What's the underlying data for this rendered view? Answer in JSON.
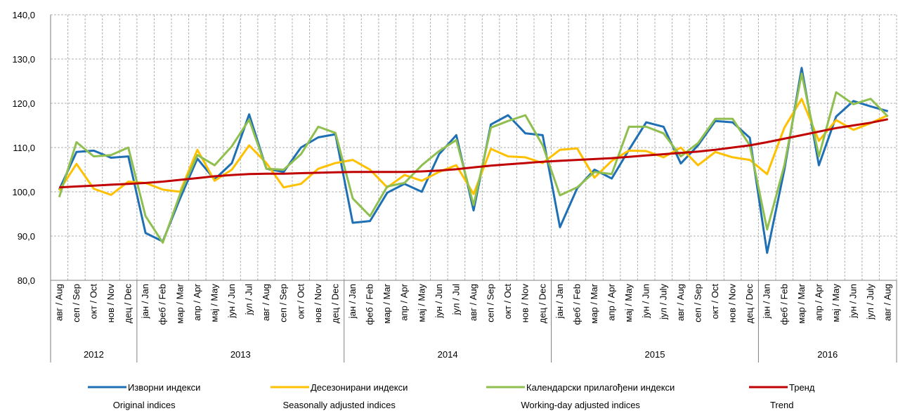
{
  "chart_data": {
    "type": "line",
    "categories": [
      "авг / Aug",
      "сеп / Sep",
      "окт / Oct",
      "нов / Nov",
      "дец / Dec",
      "јан / Jan",
      "феб / Feb",
      "мар / Mar",
      "апр / Apr",
      "мај / May",
      "јун / Jun",
      "јул / Jul",
      "авг / Aug",
      "сеп / Sep",
      "окт / Oct",
      "нов / Nov",
      "дец / Dec",
      "јан / Jan",
      "феб / Feb",
      "мар / Mar",
      "апр / Apr",
      "мај / May",
      "јун / Jun",
      "јул / Jul",
      "авг / Aug",
      "сеп / Sep",
      "окт / Oct",
      "нов / Nov",
      "дец / Dec",
      "јан / Jan",
      "феб / Feb",
      "мар / Mar",
      "апр / Apr",
      "мај / May",
      "јун / Jun",
      "јул / July",
      "авг / Aug",
      "сеп / Sep",
      "окт / Oct",
      "нов / Nov",
      "дец / Dec",
      "јан / Jan",
      "феб / Feb",
      "мар / Mar",
      "апр / Apr",
      "мај / May",
      "јун / Jun",
      "јул / July",
      "авг / Aug"
    ],
    "groups": [
      {
        "label": "2012",
        "count": 5
      },
      {
        "label": "2013",
        "count": 12
      },
      {
        "label": "2014",
        "count": 12
      },
      {
        "label": "2015",
        "count": 12
      },
      {
        "label": "2016",
        "count": 8
      }
    ],
    "series": [
      {
        "name": "Изворни индекси",
        "name_en": "Original indices",
        "color": "#1f6fb5",
        "values": [
          100.5,
          109,
          109.3,
          107.7,
          108,
          90.7,
          88.8,
          98.5,
          107.5,
          102.8,
          106.5,
          117.5,
          105.2,
          104.5,
          110,
          112.3,
          113,
          93,
          93.4,
          99.8,
          101.8,
          100,
          108.5,
          112.8,
          95.8,
          115.2,
          117.3,
          113.2,
          112.8,
          92,
          100.8,
          105,
          103,
          109.5,
          115.7,
          114.7,
          106.4,
          110.5,
          116,
          115.7,
          112.2,
          86.2,
          105,
          128,
          106,
          117,
          120.5,
          119.3,
          118.2
        ]
      },
      {
        "name": "Десезонирани индекси",
        "name_en": "Seasonally adjusted indices",
        "color": "#ffc000",
        "values": [
          100.3,
          106.3,
          100.7,
          99.3,
          102.3,
          102,
          100.5,
          100,
          109.5,
          102.5,
          105,
          110.5,
          106.5,
          101,
          101.8,
          105.2,
          106.5,
          107.2,
          105,
          101,
          103.8,
          102.5,
          104.5,
          106,
          99.5,
          109.7,
          108,
          107.8,
          106.5,
          109.5,
          109.8,
          103.2,
          107,
          109.3,
          109.2,
          107.8,
          110,
          106,
          109,
          107.8,
          107.2,
          104,
          114.5,
          121,
          111.5,
          116.2,
          114,
          115.5,
          117.3
        ]
      },
      {
        "name": "Календарски прилагођени индекси",
        "name_en": "Working-day adjusted indices",
        "color": "#8fbf4f",
        "values": [
          98.8,
          111.2,
          108,
          108.3,
          110,
          94.5,
          88.5,
          99.5,
          108.3,
          106,
          110.3,
          116.3,
          105.2,
          105,
          108.5,
          114.7,
          113.3,
          98.5,
          94.5,
          101.2,
          102,
          106,
          109.2,
          111.7,
          97,
          114.5,
          116,
          117.3,
          110.5,
          99.2,
          101,
          104.5,
          104,
          114.7,
          114.7,
          113.2,
          108,
          111,
          116.5,
          116.5,
          110.5,
          91.5,
          106,
          126.7,
          108,
          122.5,
          119.8,
          121,
          117
        ]
      },
      {
        "name": "Тренд",
        "name_en": "Trend",
        "color": "#c00000",
        "values": [
          101,
          101.2,
          101.4,
          101.6,
          101.8,
          102,
          102.3,
          102.7,
          103.1,
          103.5,
          103.8,
          104,
          104.1,
          104.1,
          104.2,
          104.3,
          104.4,
          104.5,
          104.5,
          104.5,
          104.5,
          104.6,
          104.8,
          105.1,
          105.5,
          105.9,
          106.2,
          106.5,
          106.8,
          107,
          107.2,
          107.4,
          107.6,
          107.9,
          108.2,
          108.5,
          108.8,
          109.1,
          109.5,
          110,
          110.5,
          111.2,
          112,
          112.8,
          113.6,
          114.4,
          115,
          115.6,
          116.4
        ]
      }
    ],
    "ylim": [
      80,
      140
    ],
    "yticks": [
      {
        "value": 80,
        "label": "80,0"
      },
      {
        "value": 90,
        "label": "90,0"
      },
      {
        "value": 100,
        "label": "100,0"
      },
      {
        "value": 110,
        "label": "110,0"
      },
      {
        "value": 120,
        "label": "120,0"
      },
      {
        "value": 130,
        "label": "130,0"
      },
      {
        "value": 140,
        "label": "140,0"
      }
    ],
    "grid": true
  }
}
